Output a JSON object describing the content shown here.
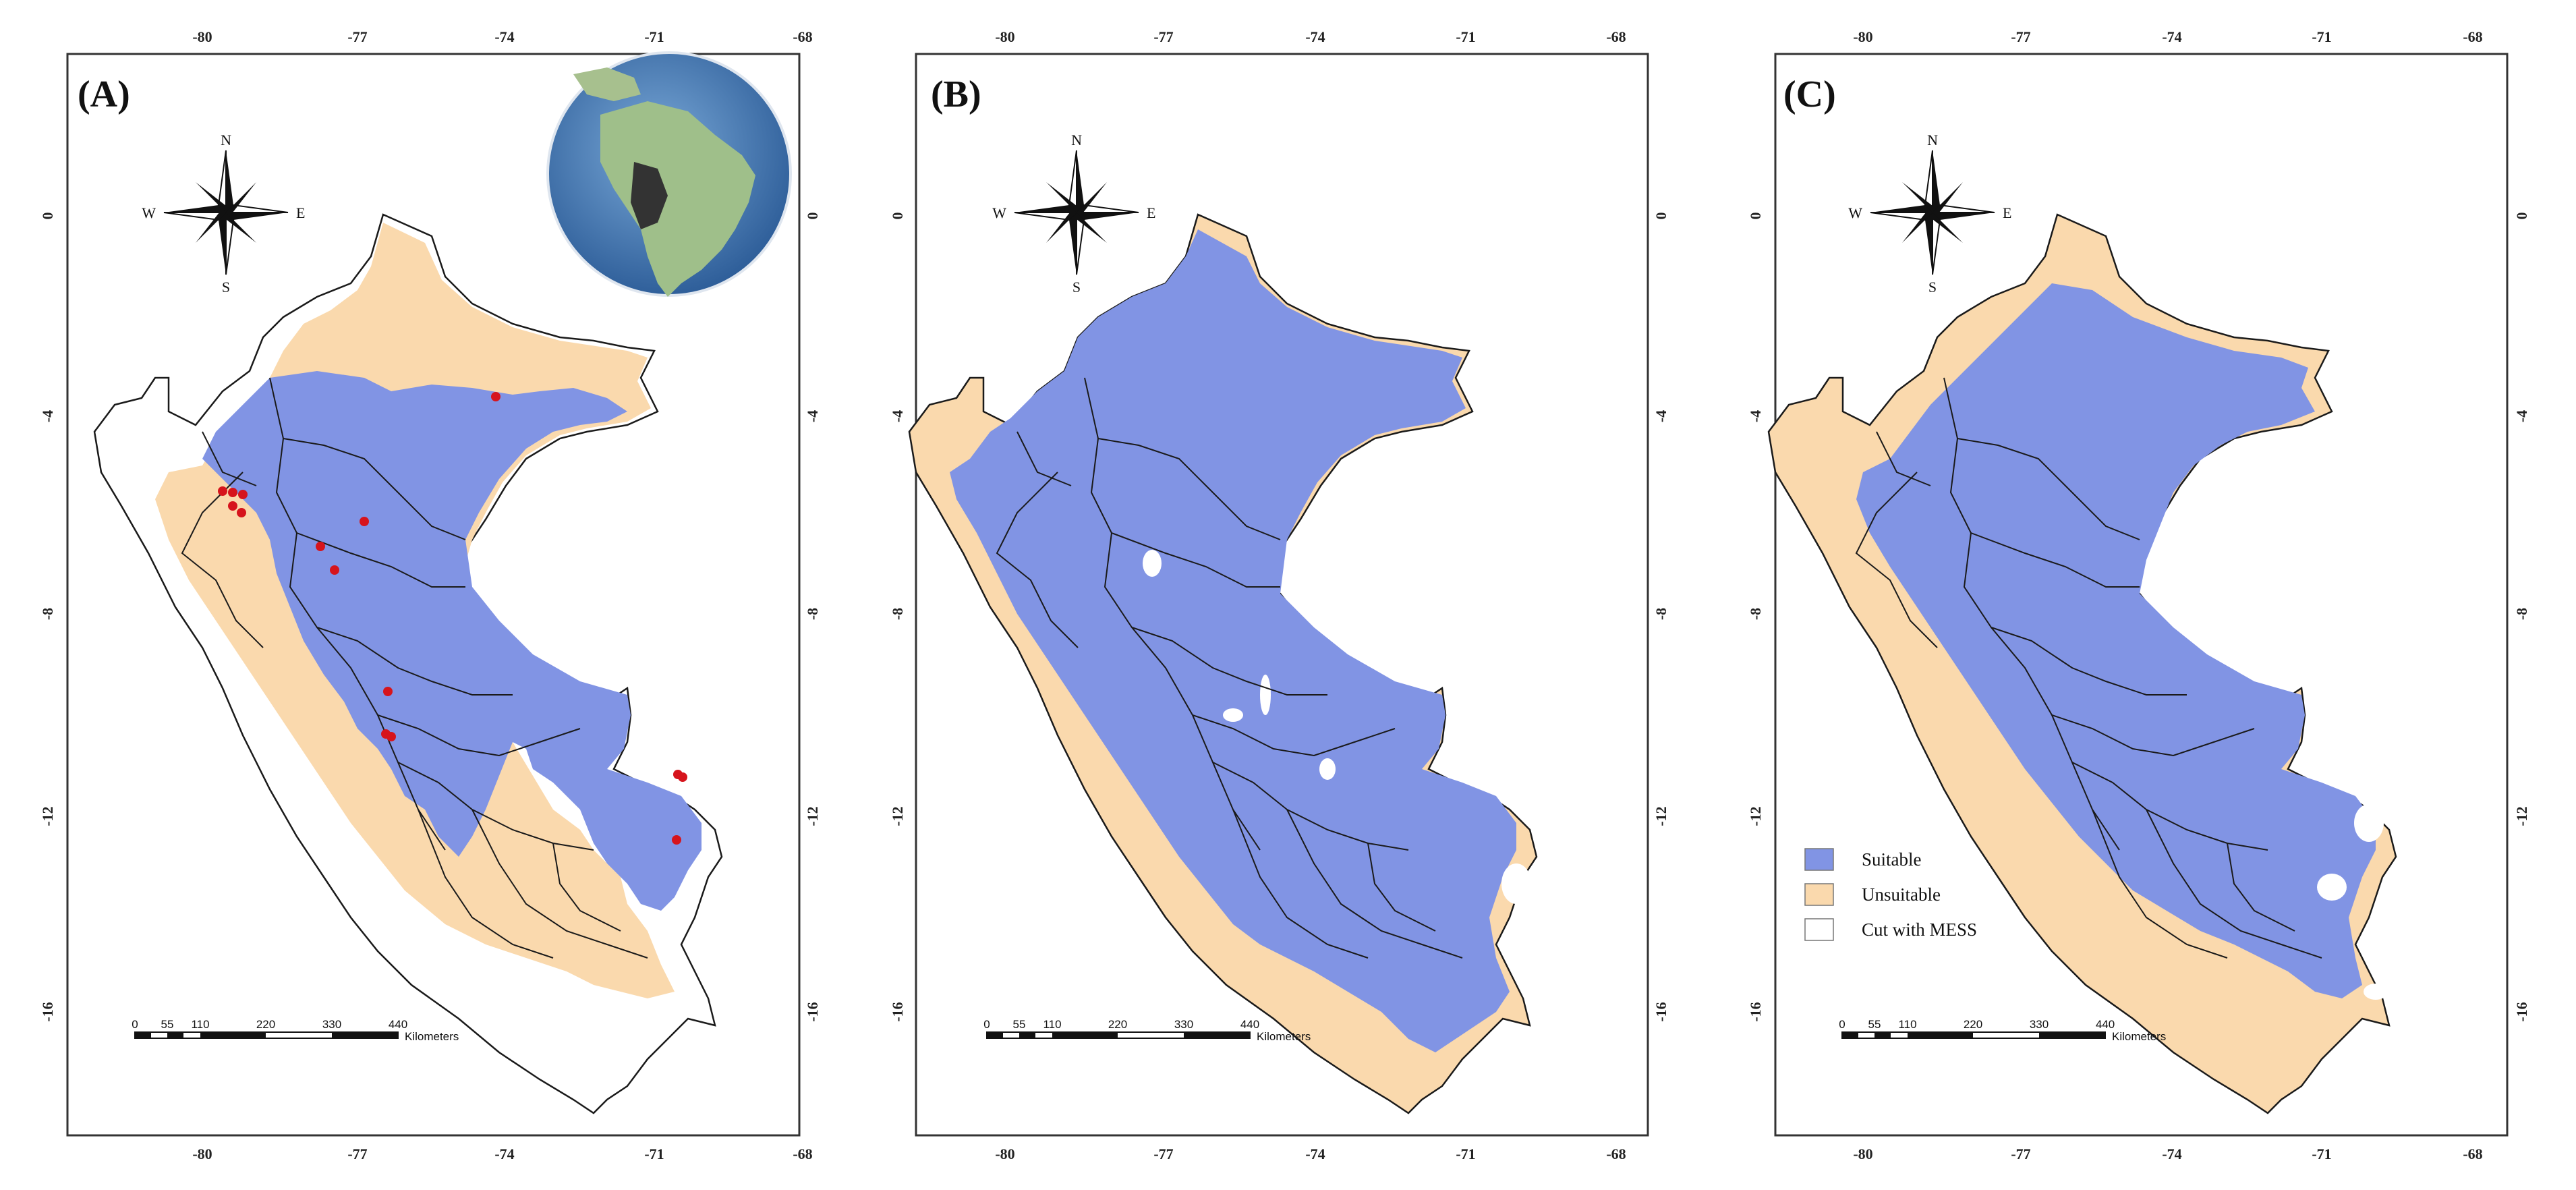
{
  "panels": [
    {
      "label": "(A)",
      "has_inset": true,
      "has_occurrences": true,
      "has_legend": false
    },
    {
      "label": "(B)",
      "has_inset": false,
      "has_occurrences": false,
      "has_legend": false
    },
    {
      "label": "(C)",
      "has_inset": false,
      "has_occurrences": false,
      "has_legend": true
    }
  ],
  "axes": {
    "longitude_ticks": [
      "-80",
      "-77",
      "-74",
      "-71",
      "-68"
    ],
    "latitude_ticks": [
      "0",
      "-4",
      "-8",
      "-12",
      "-16"
    ],
    "tick_subscript": "000000"
  },
  "compass": {
    "north": "N",
    "south": "S",
    "east": "E",
    "west": "W"
  },
  "scale_bar": {
    "ticks": [
      "0",
      "55",
      "110",
      "220",
      "330",
      "440"
    ],
    "unit": "Kilometers"
  },
  "legend": {
    "items": [
      {
        "label": "Suitable",
        "color": "#8194e4"
      },
      {
        "label": "Unsuitable",
        "color": "#fad9ad"
      },
      {
        "label": "Cut with MESS",
        "color": "#ffffff"
      }
    ]
  },
  "colors": {
    "suitable": "#8194e4",
    "unsuitable": "#fad9ad",
    "cut_with_mess": "#ffffff",
    "occurrence": "#d6141c",
    "boundary": "#1a1a1a"
  }
}
